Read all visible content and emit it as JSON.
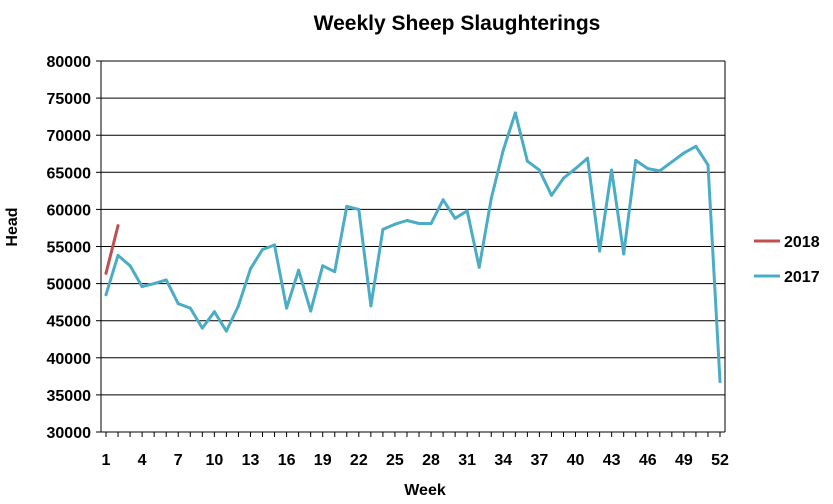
{
  "chart_data": {
    "type": "line",
    "title": "Weekly Sheep Slaughterings",
    "xlabel": "Week",
    "ylabel": "Head",
    "ylim": [
      30000,
      80000
    ],
    "xlim": [
      1,
      52
    ],
    "yticks": [
      "30000",
      "35000",
      "40000",
      "45000",
      "50000",
      "55000",
      "60000",
      "65000",
      "70000",
      "75000",
      "80000"
    ],
    "xticks": [
      "1",
      "4",
      "7",
      "10",
      "13",
      "16",
      "19",
      "22",
      "25",
      "28",
      "31",
      "34",
      "37",
      "40",
      "43",
      "46",
      "49",
      "52"
    ],
    "grid": true,
    "legend_position": "right",
    "series": [
      {
        "name": "2018",
        "color": "#c0504d",
        "x": [
          1,
          2
        ],
        "values": [
          51400,
          57800
        ]
      },
      {
        "name": "2017",
        "color": "#4bacc6",
        "x": [
          1,
          2,
          3,
          4,
          5,
          6,
          7,
          8,
          9,
          10,
          11,
          12,
          13,
          14,
          15,
          16,
          17,
          18,
          19,
          20,
          21,
          22,
          23,
          24,
          25,
          26,
          27,
          28,
          29,
          30,
          31,
          32,
          33,
          34,
          35,
          36,
          37,
          38,
          39,
          40,
          41,
          42,
          43,
          44,
          45,
          46,
          47,
          48,
          49,
          50,
          51,
          52
        ],
        "values": [
          48500,
          53800,
          52400,
          49600,
          50000,
          50500,
          47300,
          46700,
          44000,
          46200,
          43600,
          47000,
          52000,
          54600,
          55200,
          46700,
          51800,
          46300,
          52400,
          51600,
          60400,
          60000,
          47000,
          57300,
          58000,
          58500,
          58100,
          58100,
          61300,
          58800,
          59800,
          52200,
          61500,
          68000,
          73000,
          66500,
          65300,
          61900,
          64200,
          65500,
          66900,
          54400,
          65300,
          54000,
          66600,
          65500,
          65200,
          66400,
          67600,
          68500,
          66000,
          36800
        ]
      }
    ]
  }
}
